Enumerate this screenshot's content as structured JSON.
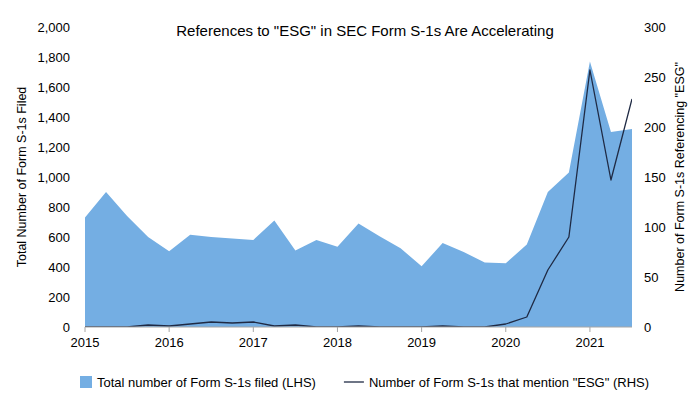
{
  "chart_data": {
    "type": "area",
    "title": "References to \"ESG\" in SEC Form S-1s Are Accelerating",
    "y_label": "Total Number of Form S-1s Filed",
    "y2_label": "Number of Form S-1s Referencing \"ESG\"",
    "x": [
      2015,
      2015.25,
      2015.5,
      2015.75,
      2016,
      2016.25,
      2016.5,
      2016.75,
      2017,
      2017.25,
      2017.5,
      2017.75,
      2018,
      2018.25,
      2018.5,
      2018.75,
      2019,
      2019.25,
      2019.5,
      2019.75,
      2020,
      2020.25,
      2020.5,
      2020.75,
      2021,
      2021.25,
      2021.5
    ],
    "xlim": [
      2015,
      2021.5
    ],
    "xticks": [
      2015,
      2016,
      2017,
      2018,
      2019,
      2020,
      2021
    ],
    "ylim": [
      0,
      2000
    ],
    "yticks": [
      0,
      200,
      400,
      600,
      800,
      {
        "value": 1000,
        "label": "1,000"
      },
      {
        "value": 1200,
        "label": "1,200"
      },
      {
        "value": 1400,
        "label": "1,400"
      },
      {
        "value": 1600,
        "label": "1,600"
      },
      {
        "value": 1800,
        "label": "1,800"
      },
      {
        "value": 2000,
        "label": "2,000"
      }
    ],
    "y2lim": [
      0,
      300
    ],
    "y2ticks": [
      0,
      50,
      100,
      150,
      200,
      250,
      300
    ],
    "grid": false,
    "legend": "bottom",
    "series": [
      {
        "name": "Total number of Form S-1s filed (LHS)",
        "type": "area",
        "color": "#74aee3",
        "values": [
          730,
          900,
          740,
          600,
          505,
          615,
          600,
          590,
          580,
          710,
          510,
          580,
          535,
          690,
          605,
          525,
          405,
          560,
          500,
          430,
          425,
          550,
          900,
          1030,
          1770,
          1300,
          1320
        ]
      },
      {
        "name": "Number of Form S-1s that mention \"ESG\" (RHS)",
        "type": "line",
        "color": "#1f2a44",
        "axis": "y2",
        "values": [
          0,
          0,
          0,
          2,
          1,
          3,
          5,
          4,
          5,
          1,
          2,
          0,
          0,
          1,
          0,
          0,
          0,
          1,
          0,
          0,
          3,
          10,
          57,
          90,
          257,
          147,
          228
        ]
      }
    ]
  }
}
